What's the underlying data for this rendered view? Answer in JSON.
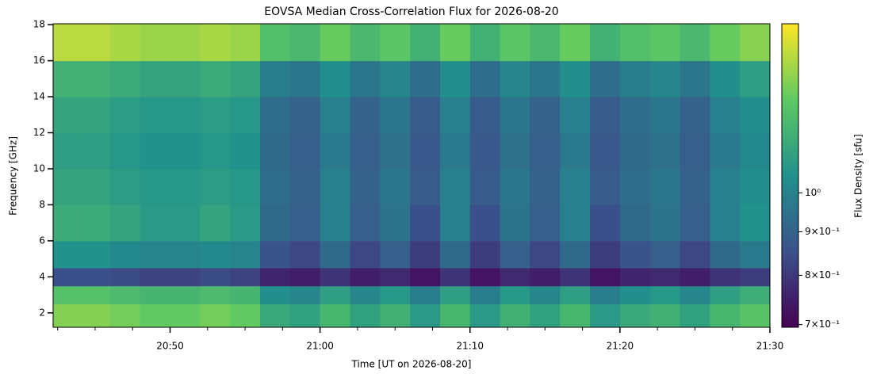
{
  "chart_data": {
    "type": "heatmap",
    "title": "EOVSA Median Cross-Correlation Flux for 2026-08-20",
    "x_label": "Time [UT on 2026-08-20]",
    "y_label": "Frequency [GHz]",
    "xlim": [
      42.2,
      90
    ],
    "xticks": [
      {
        "value": 50,
        "label": "20:50"
      },
      {
        "value": 60,
        "label": "21:00"
      },
      {
        "value": 70,
        "label": "21:10"
      },
      {
        "value": 80,
        "label": "21:20"
      },
      {
        "value": 90,
        "label": "21:30"
      }
    ],
    "xminorticks": [
      42.5,
      45,
      47.5,
      52.5,
      55,
      57.5,
      62.5,
      65,
      67.5,
      72.5,
      75,
      77.5,
      82.5,
      85,
      87.5
    ],
    "ylim": [
      1.2,
      18.05
    ],
    "yticks": [
      2,
      4,
      6,
      8,
      10,
      12,
      14,
      16,
      18
    ],
    "x_edges": [
      42.2,
      44,
      46,
      48,
      50,
      52,
      54,
      56,
      58,
      60,
      62,
      64,
      66,
      68,
      70,
      72,
      74,
      76,
      78,
      80,
      82,
      84,
      86,
      88,
      90
    ],
    "y_edges": [
      1.2,
      2.5,
      3.5,
      4.5,
      6,
      8,
      10,
      12,
      14,
      16,
      18.05
    ],
    "values": [
      [
        1.35,
        1.35,
        1.32,
        1.29,
        1.29,
        1.32,
        1.29,
        1.14,
        1.11,
        1.2,
        1.11,
        1.17,
        1.08,
        1.2,
        1.08,
        1.17,
        1.11,
        1.2,
        1.08,
        1.14,
        1.17,
        1.11,
        1.2,
        1.26
      ],
      [
        1.25,
        1.25,
        1.22,
        1.19,
        1.19,
        1.22,
        1.19,
        1.04,
        1.01,
        1.1,
        1.01,
        1.07,
        0.98,
        1.1,
        0.98,
        1.07,
        1.01,
        1.1,
        0.98,
        1.04,
        1.07,
        1.01,
        1.1,
        1.16
      ],
      [
        0.85,
        0.85,
        0.84,
        0.82,
        0.82,
        0.84,
        0.82,
        0.76,
        0.75,
        0.79,
        0.75,
        0.77,
        0.73,
        0.79,
        0.73,
        0.77,
        0.75,
        0.79,
        0.73,
        0.76,
        0.77,
        0.75,
        0.79,
        0.81
      ],
      [
        1.05,
        1.05,
        1.02,
        1,
        1,
        1.02,
        1,
        0.86,
        0.83,
        0.92,
        0.83,
        0.89,
        0.81,
        0.92,
        0.81,
        0.89,
        0.83,
        0.92,
        0.81,
        0.86,
        0.89,
        0.83,
        0.92,
        0.97
      ],
      [
        1.15,
        1.15,
        1.12,
        1.08,
        1.08,
        1.12,
        1.08,
        0.92,
        0.89,
        0.99,
        0.89,
        0.95,
        0.85,
        0.99,
        0.85,
        0.95,
        0.89,
        0.99,
        0.85,
        0.92,
        0.95,
        0.89,
        0.99,
        1.05
      ],
      [
        1.12,
        1.12,
        1.09,
        1.07,
        1.07,
        1.09,
        1.07,
        0.93,
        0.9,
        0.99,
        0.9,
        0.96,
        0.88,
        0.99,
        0.88,
        0.96,
        0.9,
        0.99,
        0.88,
        0.93,
        0.96,
        0.9,
        0.99,
        1.04
      ],
      [
        1.1,
        1.1,
        1.07,
        1.05,
        1.05,
        1.07,
        1.05,
        0.92,
        0.89,
        0.97,
        0.89,
        0.94,
        0.87,
        0.97,
        0.87,
        0.94,
        0.89,
        0.97,
        0.87,
        0.92,
        0.94,
        0.89,
        0.97,
        1.02
      ],
      [
        1.12,
        1.12,
        1.09,
        1.07,
        1.07,
        1.09,
        1.07,
        0.93,
        0.9,
        0.99,
        0.9,
        0.96,
        0.88,
        0.99,
        0.88,
        0.96,
        0.9,
        0.99,
        0.88,
        0.93,
        0.96,
        0.9,
        0.99,
        1.04
      ],
      [
        1.18,
        1.18,
        1.15,
        1.12,
        1.12,
        1.15,
        1.12,
        0.98,
        0.96,
        1.04,
        0.96,
        1.01,
        0.93,
        1.04,
        0.93,
        1.01,
        0.96,
        1.04,
        0.93,
        0.98,
        1.01,
        0.96,
        1.04,
        1.1
      ],
      [
        1.45,
        1.45,
        1.42,
        1.39,
        1.39,
        1.42,
        1.39,
        1.24,
        1.21,
        1.3,
        1.21,
        1.27,
        1.18,
        1.3,
        1.18,
        1.27,
        1.21,
        1.3,
        1.18,
        1.24,
        1.27,
        1.21,
        1.3,
        1.36
      ]
    ],
    "colorbar": {
      "label": "Flux Density [sfu]",
      "scale": "log",
      "colormap": "viridis",
      "lim": [
        0.695,
        1.58
      ],
      "ticks": [
        {
          "value": 0.7,
          "label": "7×10⁻¹"
        },
        {
          "value": 0.8,
          "label": "8×10⁻¹"
        },
        {
          "value": 0.9,
          "label": "9×10⁻¹"
        },
        {
          "value": 1,
          "label": "10⁰"
        }
      ]
    }
  }
}
